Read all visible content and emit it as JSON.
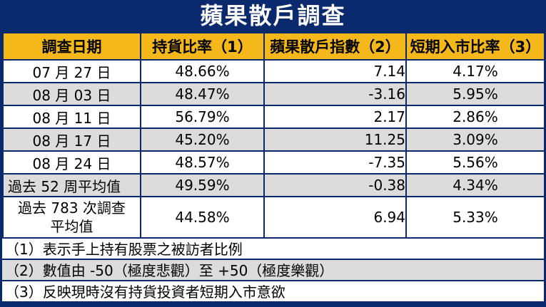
{
  "title": "蘋果散戶調查",
  "headers": {
    "date": "調查日期",
    "hold": "持貨比率（1）",
    "index": "蘋果散戶指數（2）",
    "short": "短期入市比率（3）"
  },
  "rows": [
    {
      "date": "07 月 27 日",
      "hold": "48.66%",
      "index": "7.14",
      "short": "4.17%"
    },
    {
      "date": "08 月 03 日",
      "hold": "48.47%",
      "index": "-3.16",
      "short": "5.95%"
    },
    {
      "date": "08 月 11 日",
      "hold": "56.79%",
      "index": "2.17",
      "short": "2.86%"
    },
    {
      "date": "08 月 17 日",
      "hold": "45.20%",
      "index": "11.25",
      "short": "3.09%"
    },
    {
      "date": "08 月 24 日",
      "hold": "48.57%",
      "index": "-7.35",
      "short": "5.56%"
    },
    {
      "date": "過去 52 周平均值",
      "hold": "49.59%",
      "index": "-0.38",
      "short": "4.34%"
    },
    {
      "date_line1": "過去 783 次調查",
      "date_line2": "平均值",
      "hold": "44.58%",
      "index": "6.94",
      "short": "5.33%"
    }
  ],
  "notes": [
    "（1）表示手上持有股票之被訪者比例",
    "（2）數值由 -50（極度悲觀）至 +50（極度樂觀）",
    "（3）反映現時沒有持貨投資者短期入市意欲"
  ],
  "colors": {
    "background": "#0b2a6e",
    "header": "#f5b81a",
    "row_alt": "#dcdcdc",
    "row_plain": "#ffffff"
  }
}
